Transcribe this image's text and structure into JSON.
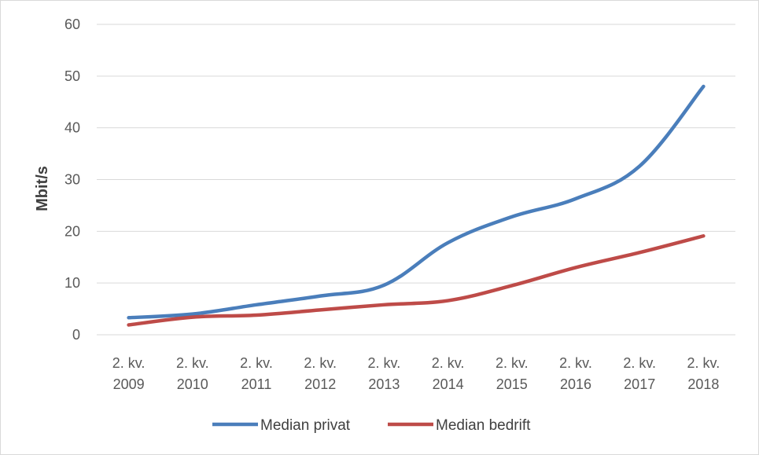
{
  "chart_data": {
    "type": "line",
    "ylabel": "Mbit/s",
    "xlabel": "",
    "ylim": [
      0,
      60
    ],
    "yticks": [
      0,
      10,
      20,
      30,
      40,
      50,
      60
    ],
    "grid": true,
    "legend_position": "bottom",
    "categories": [
      [
        "2. kv.",
        "2009"
      ],
      [
        "2. kv.",
        "2010"
      ],
      [
        "2. kv.",
        "2011"
      ],
      [
        "2. kv.",
        "2012"
      ],
      [
        "2. kv.",
        "2013"
      ],
      [
        "2. kv.",
        "2014"
      ],
      [
        "2. kv.",
        "2015"
      ],
      [
        "2. kv.",
        "2016"
      ],
      [
        "2. kv.",
        "2017"
      ],
      [
        "2. kv.",
        "2018"
      ]
    ],
    "series": [
      {
        "name": "Median privat",
        "color": "#4a7ebb",
        "values": [
          3.3,
          4.0,
          5.8,
          7.5,
          9.6,
          17.8,
          22.8,
          26.3,
          32.6,
          48.0
        ]
      },
      {
        "name": "Median bedrift",
        "color": "#be4b48",
        "values": [
          1.9,
          3.4,
          3.8,
          4.8,
          5.8,
          6.6,
          9.5,
          13.0,
          15.9,
          19.1
        ]
      }
    ]
  }
}
